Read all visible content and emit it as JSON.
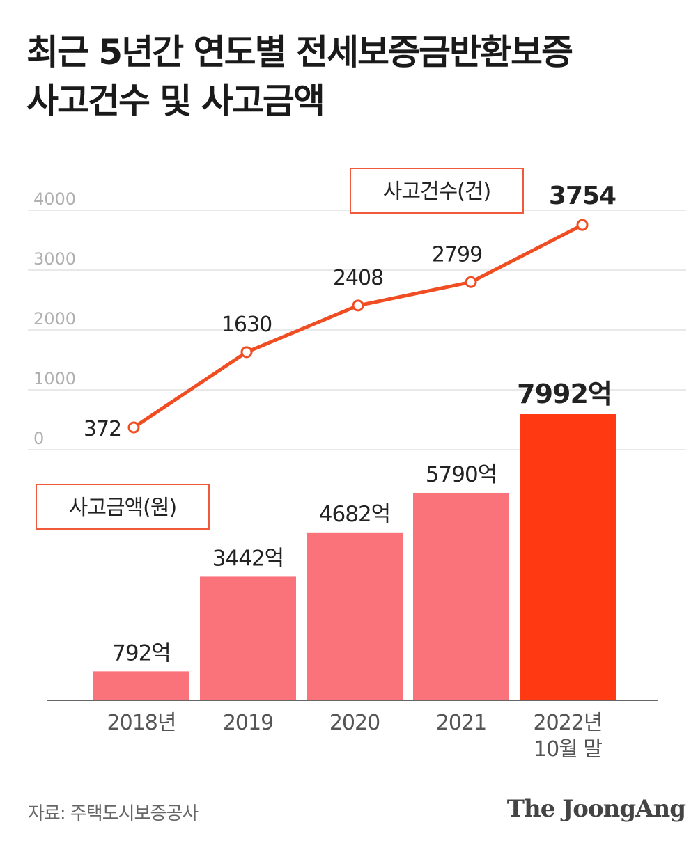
{
  "title_lines": [
    "최근 5년간 연도별 전세보증금반환보증",
    "사고건수 및 사고금액"
  ],
  "chart_data": {
    "type": "bar+line",
    "title": "최근 5년간 연도별 전세보증금반환보증 사고건수 및 사고금액",
    "categories": [
      [
        "2018년"
      ],
      [
        "2019"
      ],
      [
        "2020"
      ],
      [
        "2021"
      ],
      [
        "2022년",
        "10월 말"
      ]
    ],
    "line": {
      "name": "사고건수(건)",
      "values": [
        372,
        1630,
        2408,
        2799,
        3754
      ],
      "labels": [
        "372",
        "1630",
        "2408",
        "2799",
        "3754"
      ],
      "color": "#f04d22",
      "axis_ticks": [
        0,
        1000,
        2000,
        3000,
        4000
      ],
      "axis_tick_labels": [
        "0",
        "1000",
        "2000",
        "3000",
        "4000"
      ],
      "ylim": [
        0,
        4000
      ],
      "grid": true
    },
    "bars": {
      "name": "사고금액(원)",
      "values": [
        792,
        3442,
        4682,
        5790,
        7992
      ],
      "unit": "억",
      "labels": [
        "792억",
        "3442억",
        "4682억",
        "5790억",
        "7992억"
      ],
      "colors": [
        "#fa737a",
        "#fa737a",
        "#fa737a",
        "#fa737a",
        "#ff3a12"
      ]
    }
  },
  "source": "자료: 주택도시보증공사",
  "brand": "The JoongAng"
}
